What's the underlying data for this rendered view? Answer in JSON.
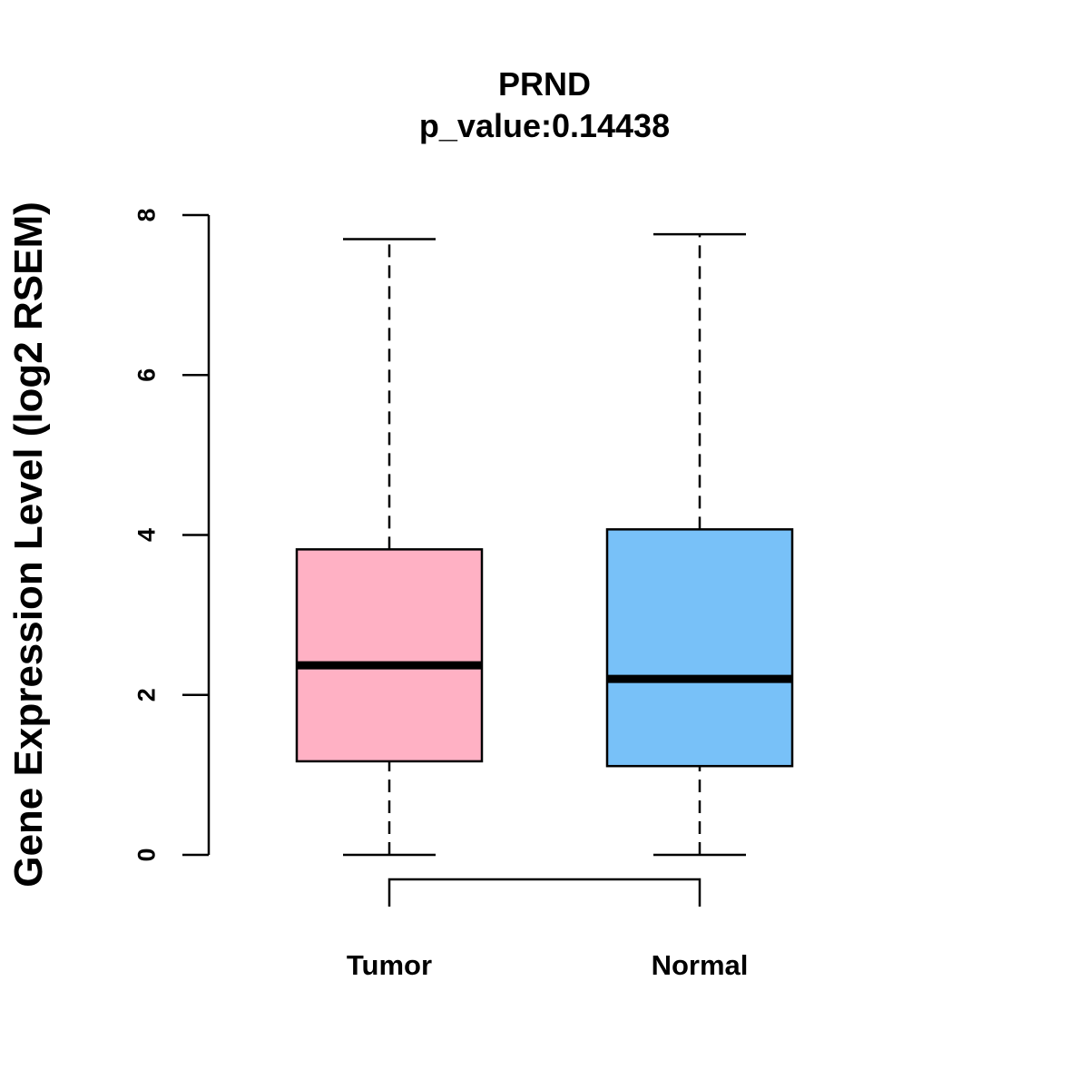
{
  "chart_data": {
    "type": "box",
    "title": "PRND",
    "subtitle": "p_value:0.14438",
    "ylabel": "Gene Expression Level (log2 RSEM)",
    "xlabel": "",
    "ylim": [
      0,
      8
    ],
    "yticks": [
      0,
      2,
      4,
      6,
      8
    ],
    "ytick_labels": [
      "0",
      "2",
      "4",
      "6",
      "8"
    ],
    "grid": false,
    "categories": [
      "Tumor",
      "Normal"
    ],
    "boxes": [
      {
        "category": "Tumor",
        "min": 0,
        "q1": 1.17,
        "median": 2.37,
        "q3": 3.82,
        "max": 7.7,
        "color": "#FFB1C4"
      },
      {
        "category": "Normal",
        "min": 0,
        "q1": 1.11,
        "median": 2.2,
        "q3": 4.07,
        "max": 7.76,
        "color": "#78C1F8"
      }
    ],
    "comparison_bracket": {
      "from": "Tumor",
      "to": "Normal"
    }
  }
}
